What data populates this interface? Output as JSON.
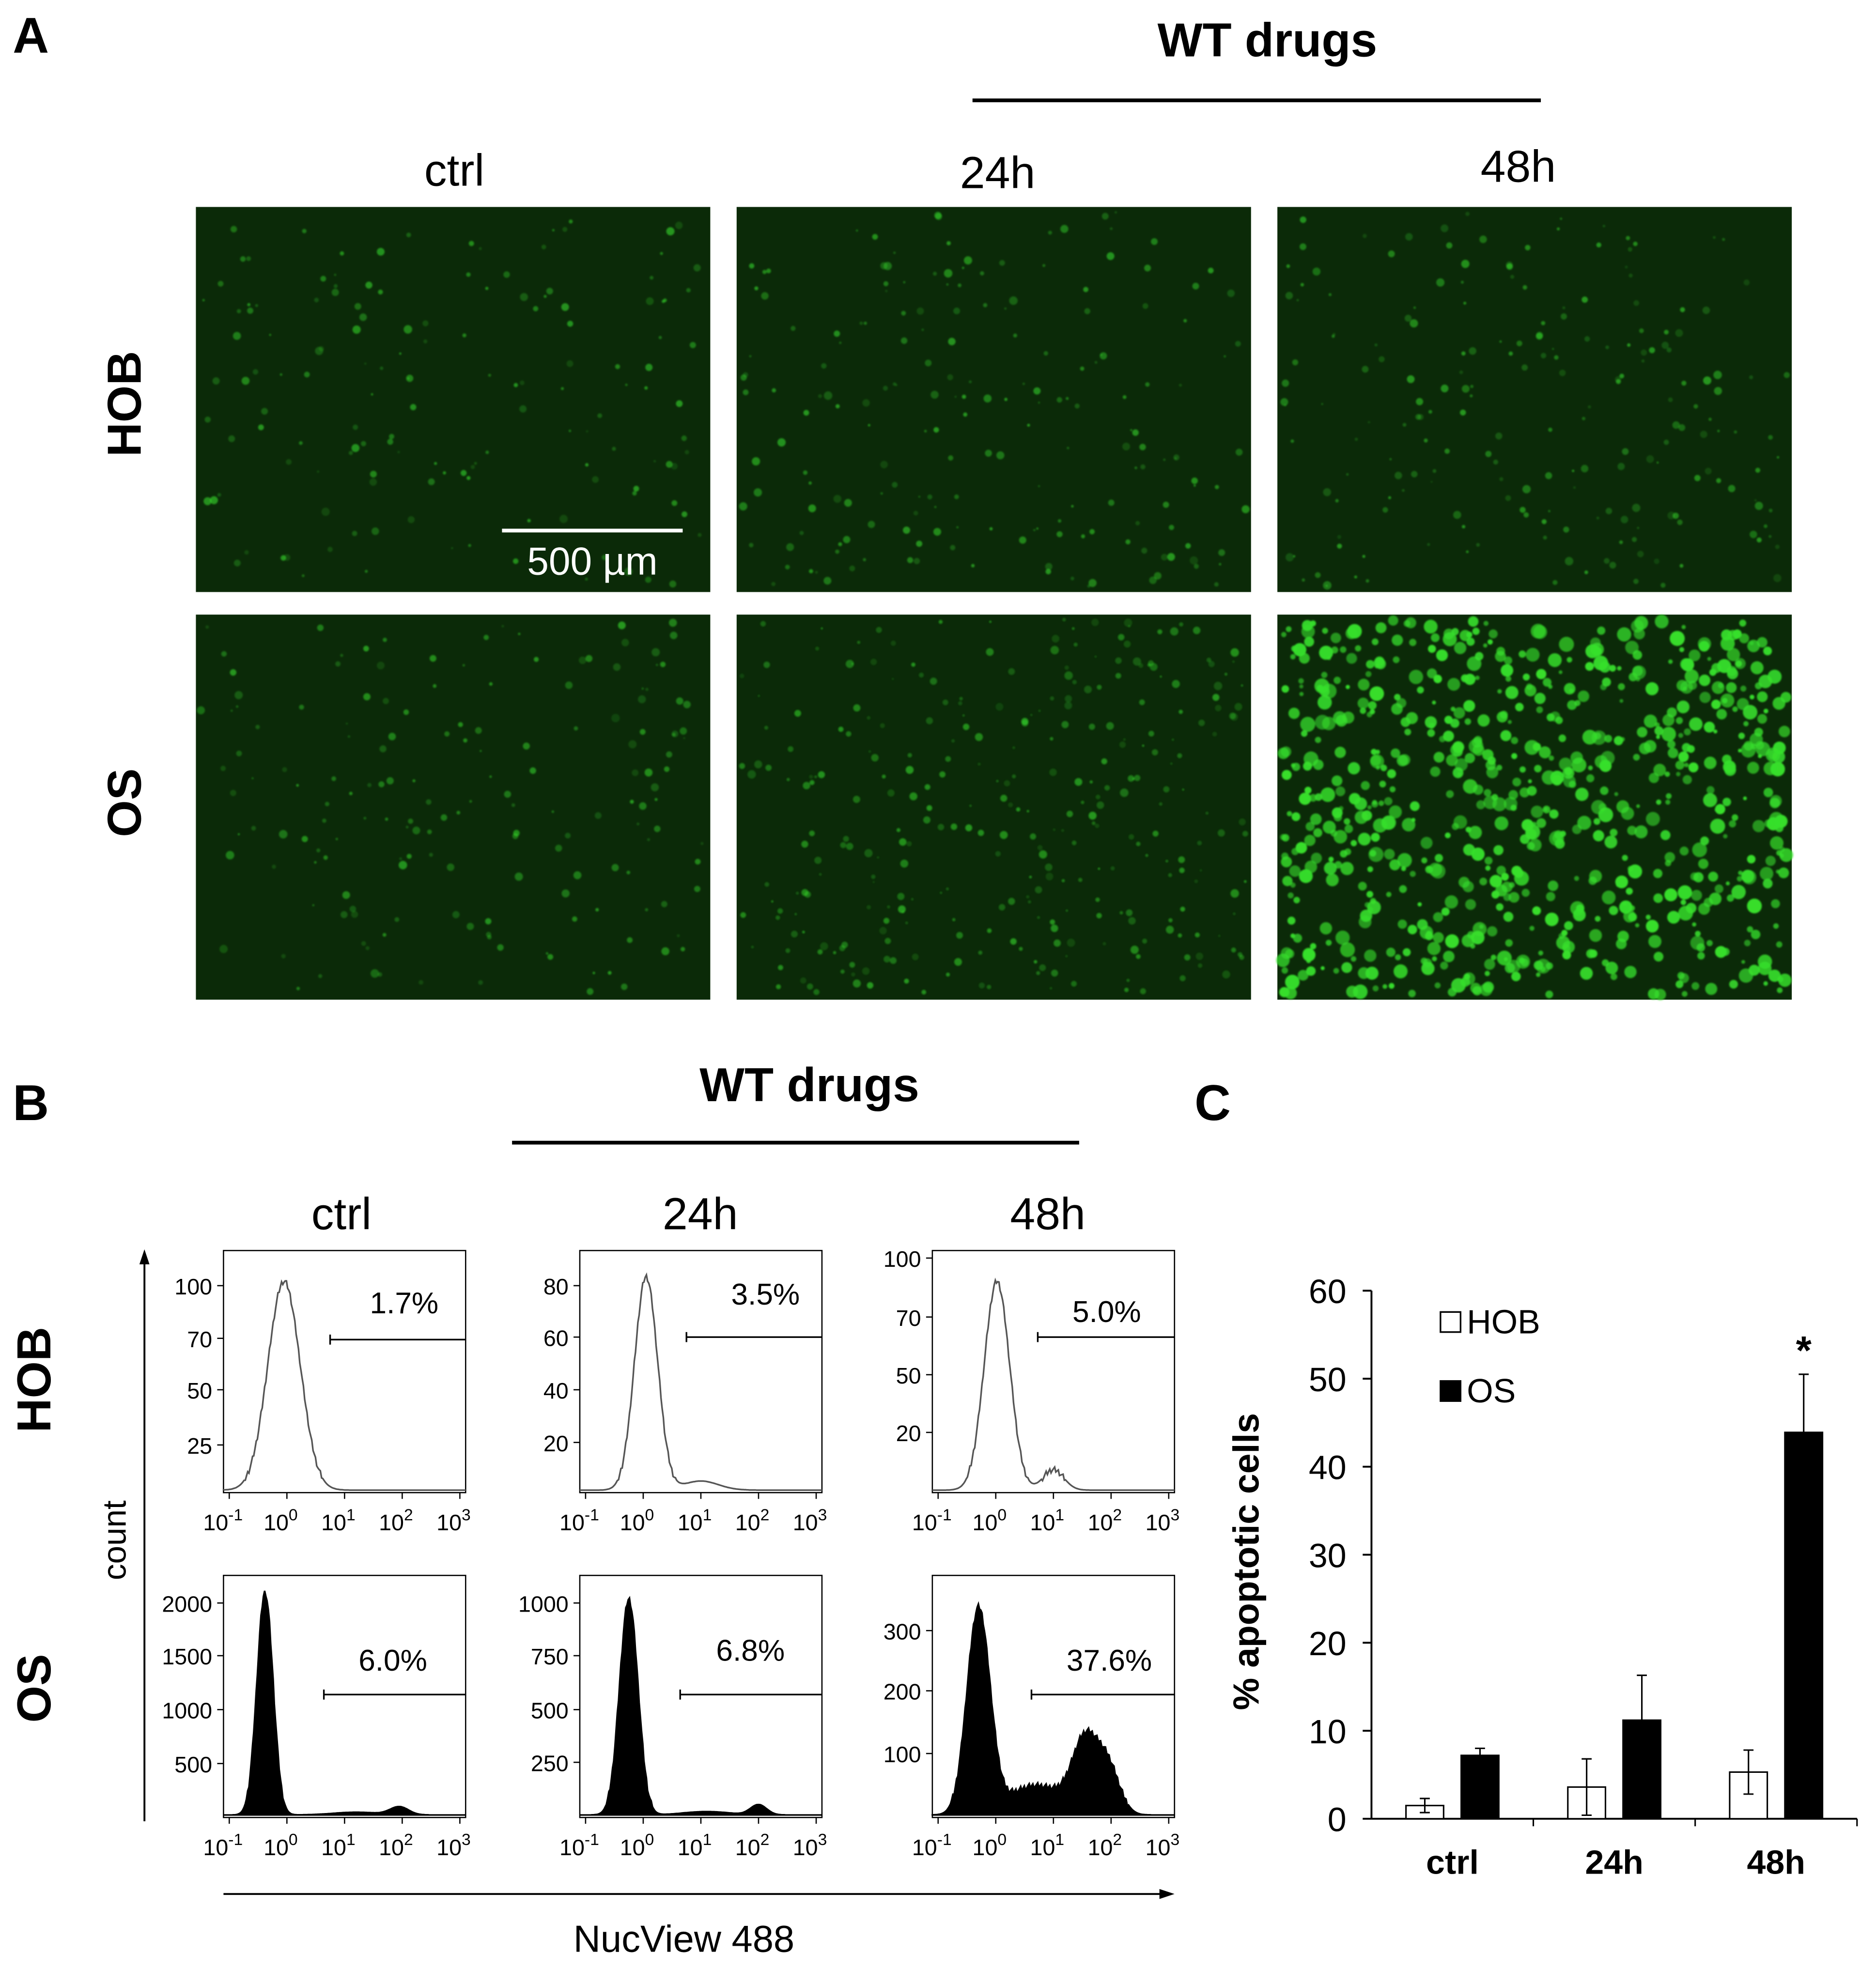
{
  "panel_labels": {
    "a": "A",
    "b": "B",
    "c": "C"
  },
  "panel_a": {
    "treatment_header": "WT drugs",
    "columns": [
      "ctrl",
      "24h",
      "48h"
    ],
    "rows": [
      "HOB",
      "OS"
    ],
    "scale_bar_label": "500 µm",
    "image_bg": "#0b2a08",
    "dot_color": "#37e02c",
    "cell_density": [
      [
        0.12,
        0.18,
        0.2
      ],
      [
        0.15,
        0.35,
        1.0
      ]
    ]
  },
  "panel_b": {
    "treatment_header": "WT drugs",
    "columns": [
      "ctrl",
      "24h",
      "48h"
    ],
    "rows": [
      "HOB",
      "OS"
    ],
    "y_axis_label": "count",
    "x_axis_label": "NucView 488",
    "x_tick_base": "10",
    "x_tick_exponents": [
      "-1",
      "0",
      "1",
      "2",
      "3"
    ],
    "histograms": [
      [
        {
          "percent": "1.7%",
          "yticks": [
            "100",
            "70",
            "50",
            "25"
          ],
          "filled": false
        },
        {
          "percent": "3.5%",
          "yticks": [
            "80",
            "60",
            "40",
            "20"
          ],
          "filled": false
        },
        {
          "percent": "5.0%",
          "yticks": [
            "100",
            "70",
            "50",
            "20"
          ],
          "filled": false
        }
      ],
      [
        {
          "percent": "6.0%",
          "yticks": [
            "2000",
            "1500",
            "1000",
            "500"
          ],
          "filled": true
        },
        {
          "percent": "6.8%",
          "yticks": [
            "1000",
            "750",
            "500",
            "250"
          ],
          "filled": true
        },
        {
          "percent": "37.6%",
          "yticks": [
            "300",
            "200",
            "100"
          ],
          "filled": true
        }
      ]
    ]
  },
  "chart_data": {
    "type": "bar",
    "categories": [
      "ctrl",
      "24h",
      "48h"
    ],
    "series": [
      {
        "name": "HOB",
        "values": [
          1.5,
          3.6,
          5.3
        ],
        "errors": [
          0.8,
          3.2,
          2.5
        ],
        "fill": "#ffffff"
      },
      {
        "name": "OS",
        "values": [
          7.2,
          11.2,
          43.9
        ],
        "errors": [
          0.8,
          5.1,
          6.6
        ],
        "fill": "#000000"
      }
    ],
    "ylabel": "% apoptotic cells",
    "ylim": [
      0,
      60
    ],
    "yticks": [
      "0",
      "10",
      "20",
      "30",
      "40",
      "50",
      "60"
    ],
    "significance_marker": "*",
    "legend_position": "top-left"
  }
}
